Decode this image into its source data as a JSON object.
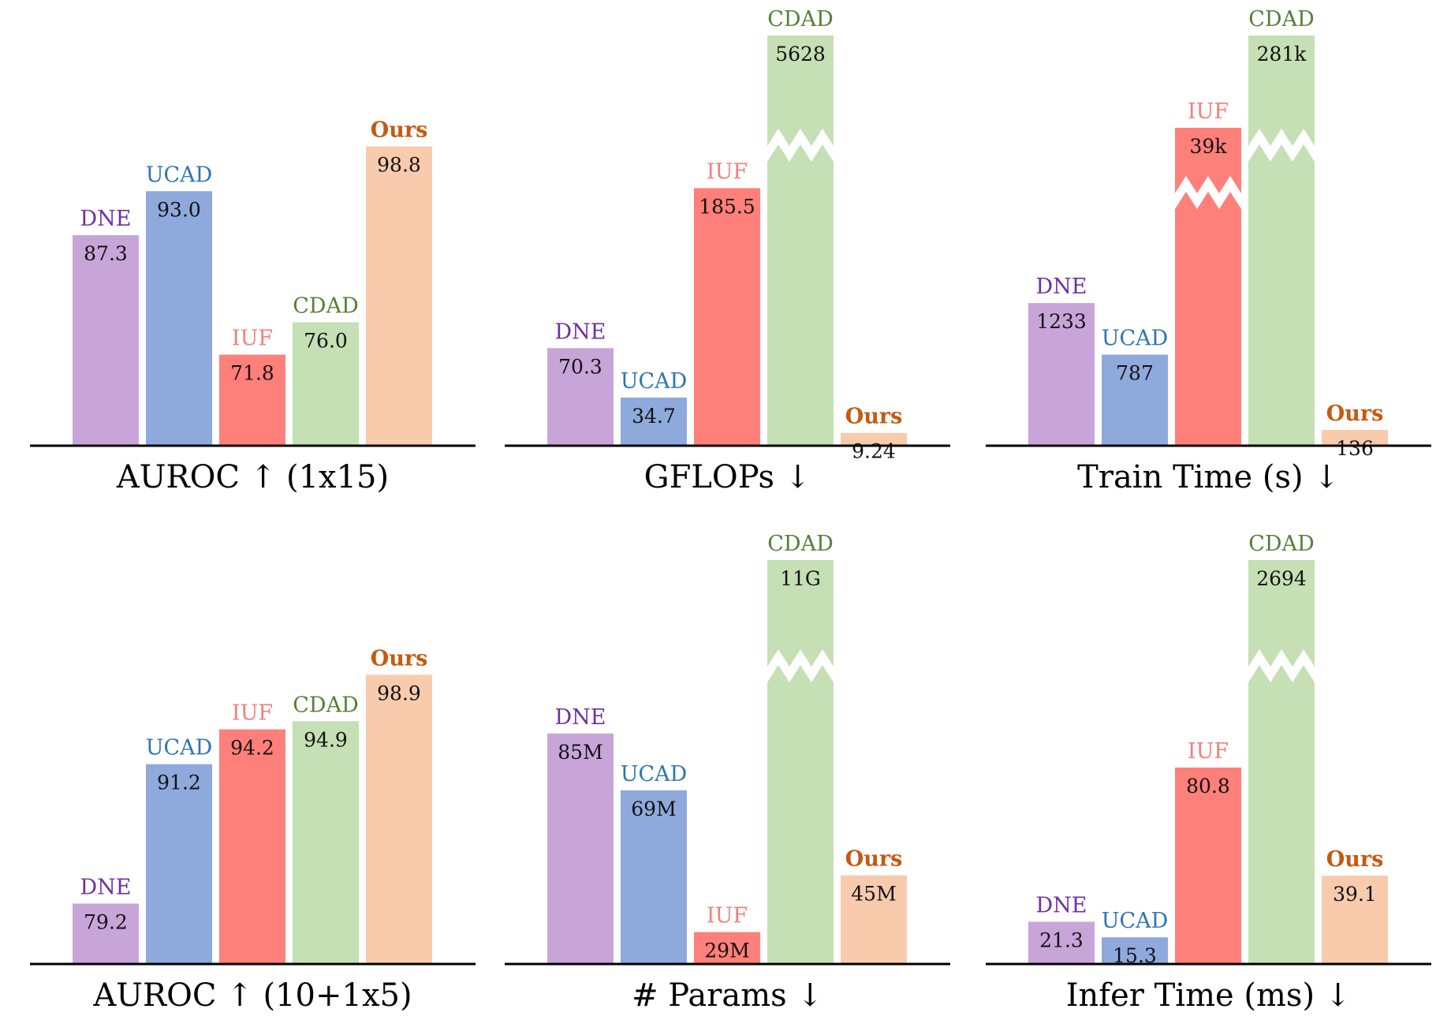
{
  "methods": [
    {
      "name": "DNE",
      "bar_color": "#c8a5d9",
      "label_color": "#7030a0",
      "bold": false
    },
    {
      "name": "UCAD",
      "bar_color": "#8eaadc",
      "label_color": "#2e75b6",
      "bold": false
    },
    {
      "name": "IUF",
      "bar_color": "#ff7f7a",
      "label_color": "#f2807b",
      "bold": false
    },
    {
      "name": "CDAD",
      "bar_color": "#c5e0b4",
      "label_color": "#538135",
      "bold": false
    },
    {
      "name": "Ours",
      "bar_color": "#f8cbad",
      "label_color": "#c55a11",
      "bold": true
    }
  ],
  "chart_data": [
    {
      "type": "bar",
      "title": "AUROC ↑ (1x15)",
      "categories": [
        "DNE",
        "UCAD",
        "IUF",
        "CDAD",
        "Ours"
      ],
      "values": [
        87.3,
        93.0,
        71.8,
        76.0,
        98.8
      ],
      "value_labels": [
        "87.3",
        "93.0",
        "71.8",
        "76.0",
        "98.8"
      ],
      "ylim": [
        60,
        105
      ],
      "broken": [
        false,
        false,
        false,
        false,
        false
      ],
      "legend": "none",
      "grid": false
    },
    {
      "type": "bar",
      "title": "GFLOPs ↓",
      "categories": [
        "DNE",
        "UCAD",
        "IUF",
        "CDAD",
        "Ours"
      ],
      "values": [
        70.3,
        34.7,
        185.5,
        5628,
        9.24
      ],
      "value_labels": [
        "70.3",
        "34.7",
        "185.5",
        "5628",
        "9.24"
      ],
      "ylim": [
        0,
        250
      ],
      "broken": [
        false,
        false,
        false,
        true,
        false
      ],
      "legend": "none",
      "grid": false
    },
    {
      "type": "bar",
      "title": "Train Time (s) ↓",
      "categories": [
        "DNE",
        "UCAD",
        "IUF",
        "CDAD",
        "Ours"
      ],
      "values": [
        1233,
        787,
        39000,
        281000,
        136
      ],
      "value_labels": [
        "1233",
        "787",
        "39k",
        "281k",
        "136"
      ],
      "ylim": [
        0,
        3000
      ],
      "broken": [
        false,
        false,
        true,
        true,
        false
      ],
      "legend": "none",
      "grid": false
    },
    {
      "type": "bar",
      "title": "AUROC ↑ (10+1x5)",
      "categories": [
        "DNE",
        "UCAD",
        "IUF",
        "CDAD",
        "Ours"
      ],
      "values": [
        79.2,
        91.2,
        94.2,
        94.9,
        98.9
      ],
      "value_labels": [
        "79.2",
        "91.2",
        "94.2",
        "94.9",
        "98.9"
      ],
      "ylim": [
        74,
        103
      ],
      "broken": [
        false,
        false,
        false,
        false,
        false
      ],
      "legend": "none",
      "grid": false
    },
    {
      "type": "bar",
      "title": "# Params ↓",
      "categories": [
        "DNE",
        "UCAD",
        "IUF",
        "CDAD",
        "Ours"
      ],
      "values": [
        85,
        69,
        29,
        11000,
        45
      ],
      "value_labels": [
        "85M",
        "69M",
        "29M",
        "11G",
        "45M"
      ],
      "ylim": [
        20,
        115
      ],
      "broken": [
        false,
        false,
        false,
        true,
        false
      ],
      "legend": "none",
      "grid": false
    },
    {
      "type": "bar",
      "title": "Infer Time (ms) ↓",
      "categories": [
        "DNE",
        "UCAD",
        "IUF",
        "CDAD",
        "Ours"
      ],
      "values": [
        21.3,
        15.3,
        80.8,
        2694,
        39.1
      ],
      "value_labels": [
        "21.3",
        "15.3",
        "80.8",
        "2694",
        "39.1"
      ],
      "ylim": [
        5,
        135
      ],
      "broken": [
        false,
        false,
        false,
        true,
        false
      ],
      "legend": "none",
      "grid": false
    }
  ]
}
